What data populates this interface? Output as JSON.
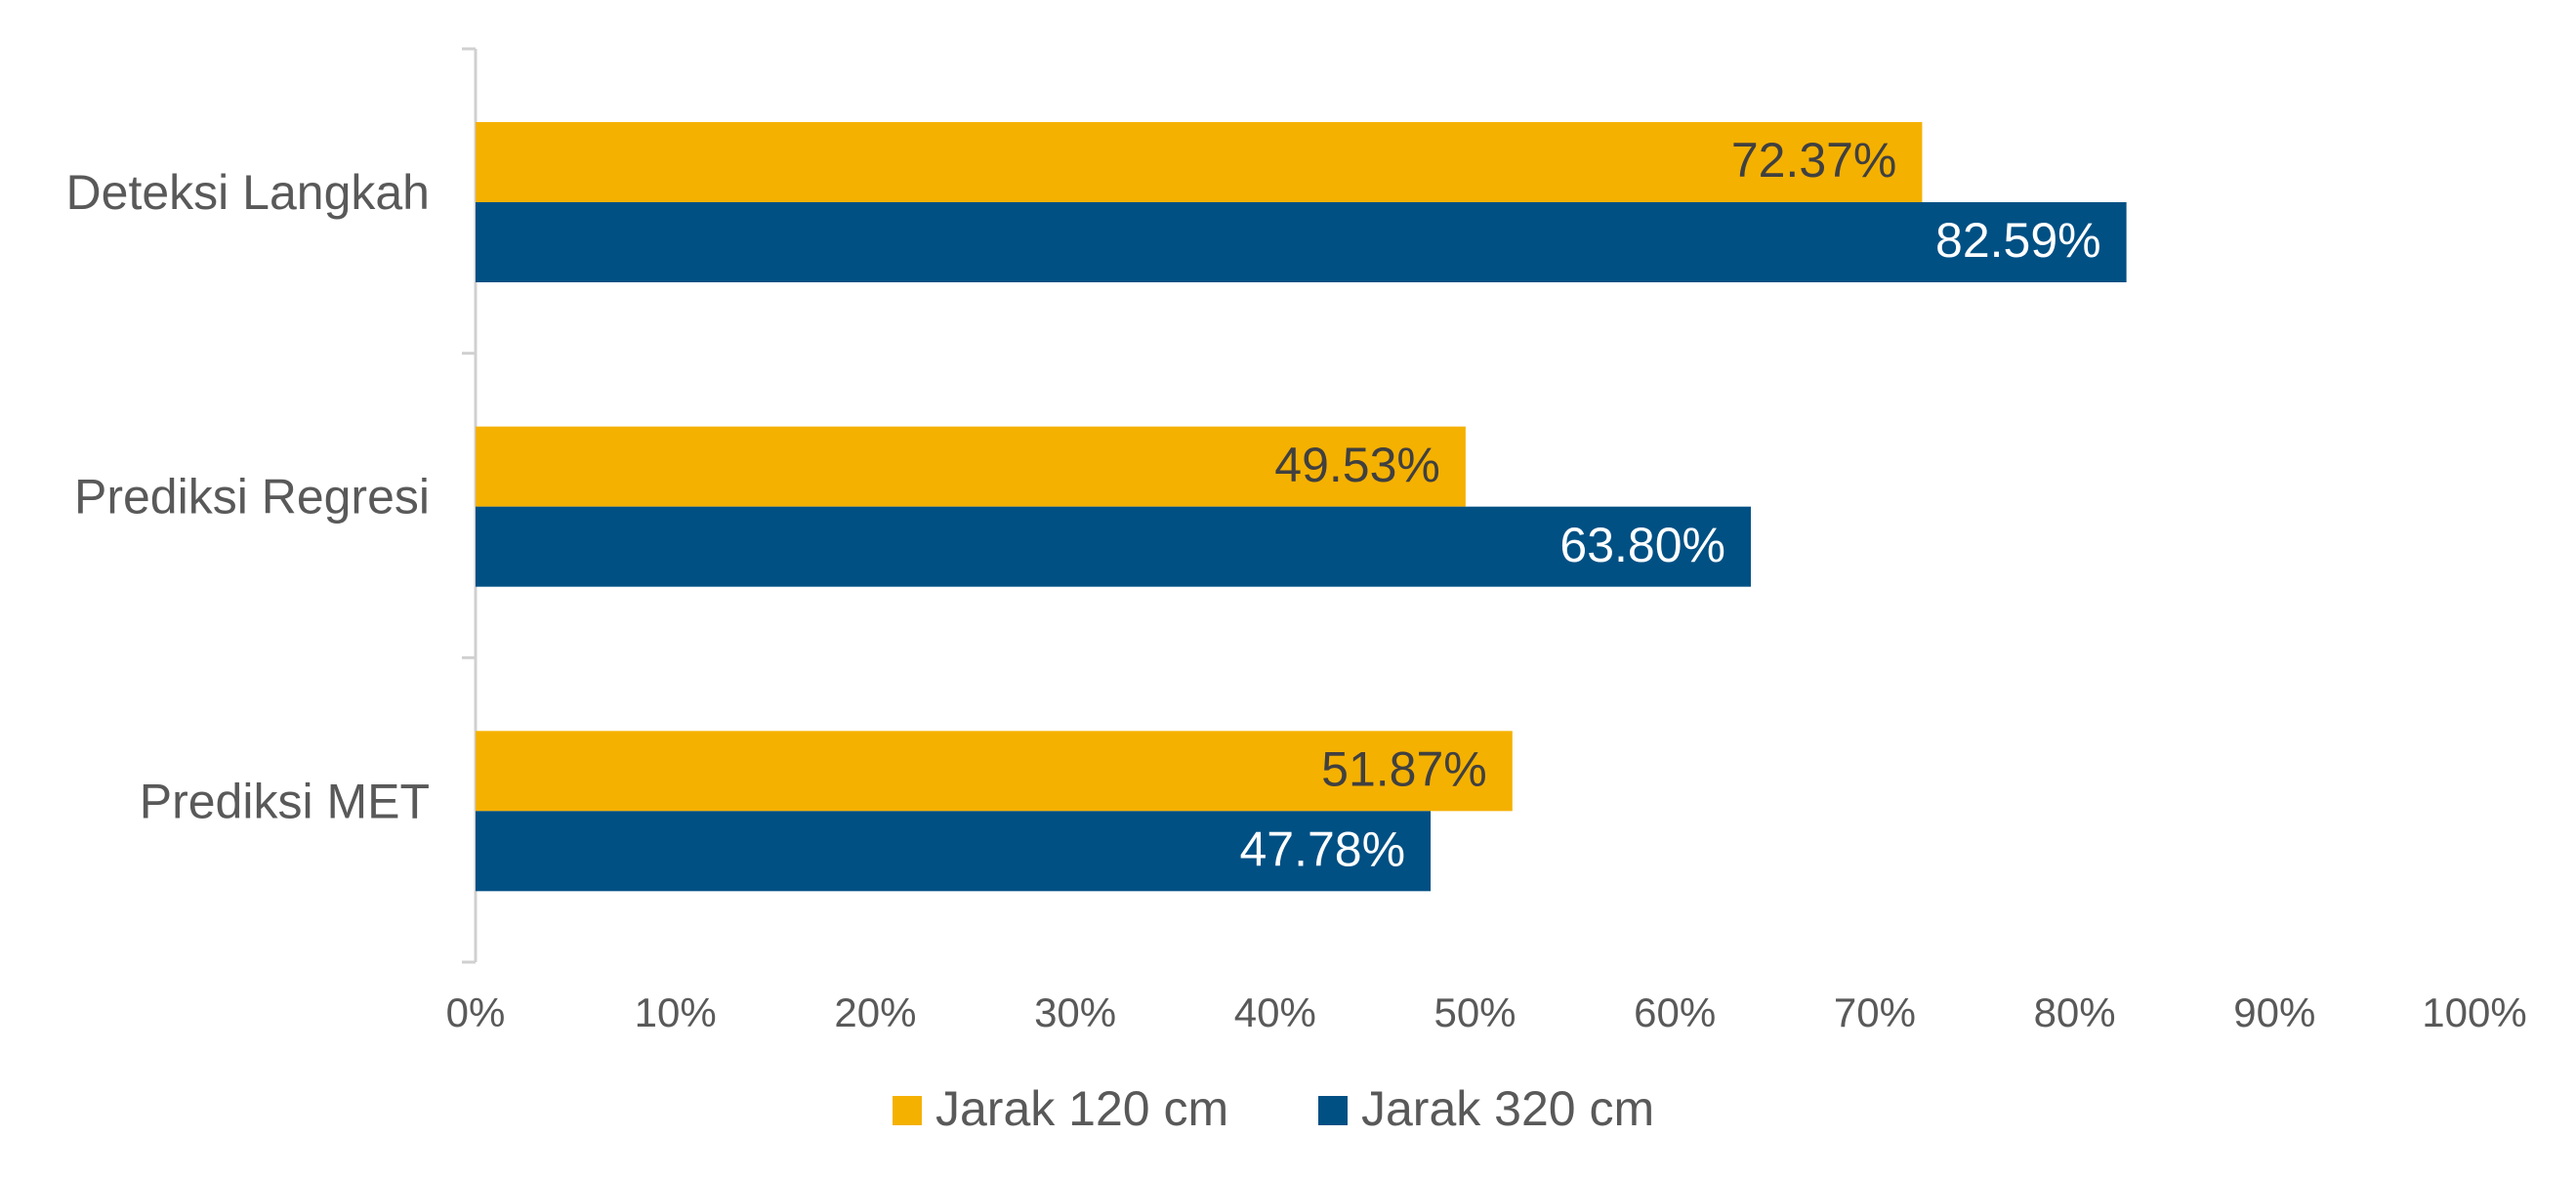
{
  "chart_data": {
    "type": "bar",
    "orientation": "horizontal",
    "categories": [
      "Deteksi Langkah",
      "Prediksi Regresi",
      "Prediksi MET"
    ],
    "series": [
      {
        "name": "Jarak 120 cm",
        "color": "#F5B100",
        "values": [
          72.37,
          49.53,
          51.87
        ],
        "labels": [
          "72.37%",
          "49.53%",
          "51.87%"
        ]
      },
      {
        "name": "Jarak 320 cm",
        "color": "#005084",
        "values": [
          82.59,
          63.8,
          47.78
        ],
        "labels": [
          "82.59%",
          "63.80%",
          "47.78%"
        ]
      }
    ],
    "xlim": [
      0,
      100
    ],
    "xticks": [
      "0%",
      "10%",
      "20%",
      "30%",
      "40%",
      "50%",
      "60%",
      "70%",
      "80%",
      "90%",
      "100%"
    ],
    "grid": false,
    "legend_position": "bottom"
  }
}
